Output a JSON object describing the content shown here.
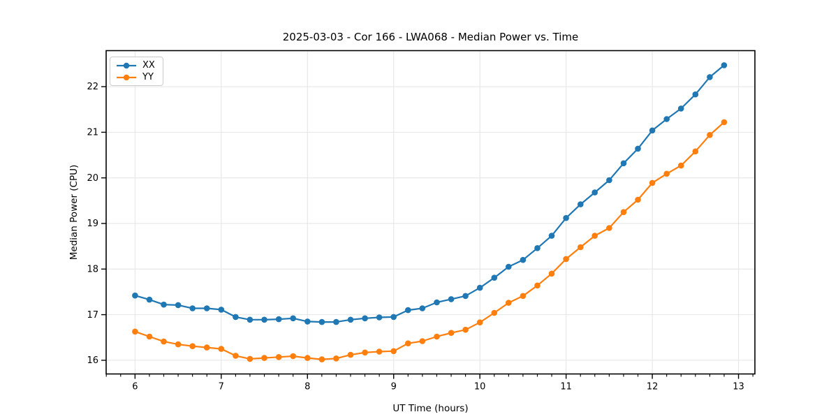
{
  "chart_data": {
    "type": "line",
    "title": "2025-03-03 - Cor 166 - LWA068 - Median Power vs. Time",
    "xlabel": "UT Time (hours)",
    "ylabel": "Median Power (CPU)",
    "x": [
      6.0,
      6.167,
      6.333,
      6.5,
      6.667,
      6.833,
      7.0,
      7.167,
      7.333,
      7.5,
      7.667,
      7.833,
      8.0,
      8.167,
      8.333,
      8.5,
      8.667,
      8.833,
      9.0,
      9.167,
      9.333,
      9.5,
      9.667,
      9.833,
      10.0,
      10.167,
      10.333,
      10.5,
      10.667,
      10.833,
      11.0,
      11.167,
      11.333,
      11.5,
      11.667,
      11.833,
      12.0,
      12.167,
      12.333,
      12.5,
      12.667,
      12.833
    ],
    "series": [
      {
        "name": "XX",
        "color": "#1f77b4",
        "marker": "circle",
        "values": [
          17.42,
          17.33,
          17.22,
          17.21,
          17.14,
          17.14,
          17.11,
          16.95,
          16.89,
          16.89,
          16.9,
          16.92,
          16.85,
          16.84,
          16.84,
          16.89,
          16.92,
          16.94,
          16.95,
          17.1,
          17.14,
          17.27,
          17.34,
          17.41,
          17.59,
          17.81,
          18.05,
          18.2,
          18.46,
          18.73,
          19.12,
          19.42,
          19.68,
          19.95,
          20.32,
          20.64,
          21.04,
          21.29,
          21.52,
          21.83,
          22.21,
          22.47
        ]
      },
      {
        "name": "YY",
        "color": "#ff7f0e",
        "marker": "circle",
        "values": [
          16.63,
          16.52,
          16.41,
          16.35,
          16.31,
          16.28,
          16.25,
          16.1,
          16.03,
          16.05,
          16.07,
          16.09,
          16.05,
          16.02,
          16.04,
          16.12,
          16.17,
          16.19,
          16.2,
          16.37,
          16.42,
          16.52,
          16.6,
          16.67,
          16.83,
          17.04,
          17.26,
          17.41,
          17.64,
          17.9,
          18.22,
          18.48,
          18.73,
          18.9,
          19.25,
          19.52,
          19.89,
          20.09,
          20.27,
          20.58,
          20.94,
          21.22
        ]
      }
    ],
    "xlim": [
      5.665,
      13.19
    ],
    "ylim": [
      15.7,
      22.79
    ],
    "xticks": [
      6,
      7,
      8,
      9,
      10,
      11,
      12,
      13
    ],
    "yticks": [
      16,
      17,
      18,
      19,
      20,
      21,
      22
    ],
    "x_minor_step": 0.16667,
    "grid": true,
    "legend_position": "upper left"
  },
  "colors": {
    "grid": "#e4e4e4",
    "spine": "#000000",
    "text": "#000000",
    "background": "#ffffff",
    "legend_border": "#cbcbcb"
  }
}
